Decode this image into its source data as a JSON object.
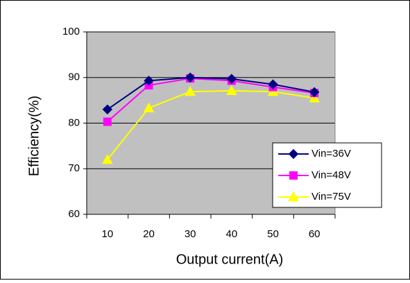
{
  "chart_data": {
    "type": "line",
    "title": "",
    "xlabel": "Output current(A)",
    "ylabel": "Efficiency(%)",
    "x": [
      10,
      20,
      30,
      40,
      50,
      60
    ],
    "x_tick_labels": [
      "10",
      "20",
      "30",
      "40",
      "50",
      "60"
    ],
    "ylim": [
      60,
      100
    ],
    "y_ticks": [
      60,
      70,
      80,
      90,
      100
    ],
    "y_tick_labels": [
      "60",
      "70",
      "80",
      "90",
      "100"
    ],
    "grid": "horizontal",
    "plot_background": "#c0c0c0",
    "legend_position": "lower-right",
    "series": [
      {
        "name": "Vin=36V",
        "values": [
          83.0,
          89.3,
          90.0,
          89.7,
          88.5,
          86.8
        ],
        "color": "#000080",
        "marker": "diamond"
      },
      {
        "name": "Vin=48V",
        "values": [
          80.3,
          88.3,
          89.8,
          89.3,
          87.9,
          86.6
        ],
        "color": "#ff00ff",
        "marker": "square"
      },
      {
        "name": "Vin=75V",
        "values": [
          72.0,
          83.3,
          86.9,
          87.1,
          86.9,
          85.5
        ],
        "color": "#ffff00",
        "marker": "triangle"
      }
    ]
  }
}
